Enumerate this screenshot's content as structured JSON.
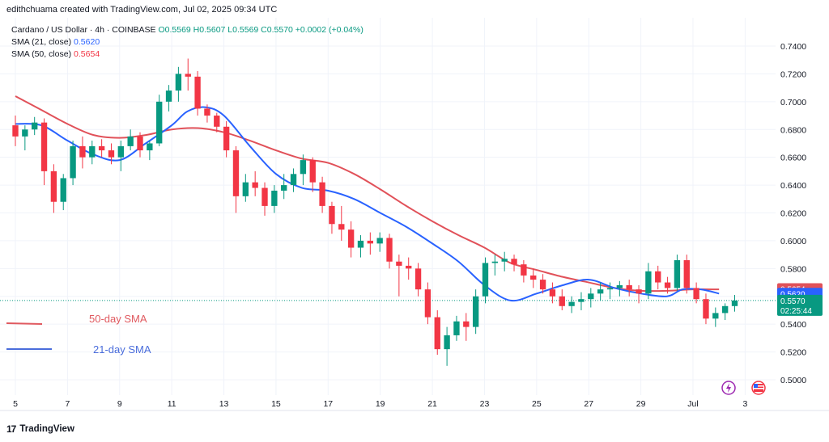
{
  "header": {
    "attribution": "edithchuama created with TradingView.com, Jul 02, 2025 09:34 UTC"
  },
  "legend": {
    "symbol": "Cardano / US Dollar · 4h · COINBASE",
    "ohlc": "O0.5569 H0.5607 L0.5569 C0.5570 +0.0002 (+0.04%)",
    "sma21_label": "SMA (21, close)",
    "sma21_value": "0.5620",
    "sma50_label": "SMA (50, close)",
    "sma50_value": "0.5654"
  },
  "brand": {
    "name": "TradingView"
  },
  "colors": {
    "up": "#089981",
    "down": "#f23645",
    "sma21": "#2962ff",
    "sma50": "#e15159",
    "sma21_light": "#4a6ddb",
    "sma50_light": "#e0595f"
  },
  "chart_data": {
    "type": "candlestick",
    "timeframe": "4h",
    "ylim": [
      0.495,
      0.743
    ],
    "xlim": [
      5.0,
      3.3
    ],
    "y_ticks": [
      "0.7400",
      "0.7200",
      "0.7000",
      "0.6800",
      "0.6600",
      "0.6400",
      "0.6200",
      "0.6000",
      "0.5800",
      "0.5600",
      "0.5400",
      "0.5200",
      "0.5000"
    ],
    "x_ticks": [
      "5",
      "7",
      "9",
      "11",
      "13",
      "15",
      "17",
      "19",
      "21",
      "23",
      "25",
      "27",
      "29",
      "Jul",
      "3"
    ],
    "current_price": "0.5570",
    "countdown": "02:25:44",
    "sma50_tag": "0.5654",
    "sma21_tag": "0.5620",
    "annotations": {
      "sma50_label": "50-day SMA",
      "sma21_label": "21-day SMA"
    },
    "ohlc_anchors": [
      [
        0.683,
        0.69,
        0.668,
        0.675
      ],
      [
        0.675,
        0.683,
        0.665,
        0.68
      ],
      [
        0.68,
        0.689,
        0.676,
        0.685
      ],
      [
        0.685,
        0.688,
        0.64,
        0.65
      ],
      [
        0.65,
        0.655,
        0.62,
        0.628
      ],
      [
        0.628,
        0.648,
        0.622,
        0.645
      ],
      [
        0.645,
        0.672,
        0.64,
        0.668
      ],
      [
        0.668,
        0.675,
        0.652,
        0.66
      ],
      [
        0.66,
        0.672,
        0.655,
        0.668
      ],
      [
        0.668,
        0.673,
        0.66,
        0.665
      ],
      [
        0.665,
        0.67,
        0.655,
        0.66
      ],
      [
        0.66,
        0.672,
        0.65,
        0.668
      ],
      [
        0.668,
        0.68,
        0.665,
        0.675
      ],
      [
        0.675,
        0.678,
        0.66,
        0.665
      ],
      [
        0.665,
        0.672,
        0.658,
        0.67
      ],
      [
        0.67,
        0.705,
        0.668,
        0.7
      ],
      [
        0.7,
        0.712,
        0.693,
        0.708
      ],
      [
        0.708,
        0.725,
        0.7,
        0.72
      ],
      [
        0.72,
        0.731,
        0.708,
        0.718
      ],
      [
        0.718,
        0.722,
        0.69,
        0.695
      ],
      [
        0.695,
        0.698,
        0.685,
        0.69
      ],
      [
        0.69,
        0.692,
        0.678,
        0.682
      ],
      [
        0.682,
        0.686,
        0.66,
        0.665
      ],
      [
        0.665,
        0.668,
        0.62,
        0.632
      ],
      [
        0.632,
        0.648,
        0.628,
        0.642
      ],
      [
        0.642,
        0.65,
        0.632,
        0.638
      ],
      [
        0.638,
        0.642,
        0.618,
        0.625
      ],
      [
        0.625,
        0.64,
        0.62,
        0.636
      ],
      [
        0.636,
        0.648,
        0.63,
        0.64
      ],
      [
        0.64,
        0.652,
        0.635,
        0.648
      ],
      [
        0.648,
        0.662,
        0.64,
        0.658
      ],
      [
        0.658,
        0.66,
        0.635,
        0.642
      ],
      [
        0.642,
        0.646,
        0.62,
        0.625
      ],
      [
        0.625,
        0.628,
        0.605,
        0.612
      ],
      [
        0.612,
        0.625,
        0.6,
        0.608
      ],
      [
        0.608,
        0.614,
        0.588,
        0.595
      ],
      [
        0.595,
        0.604,
        0.588,
        0.6
      ],
      [
        0.6,
        0.606,
        0.59,
        0.598
      ],
      [
        0.598,
        0.606,
        0.592,
        0.602
      ],
      [
        0.602,
        0.605,
        0.58,
        0.585
      ],
      [
        0.585,
        0.59,
        0.56,
        0.582
      ],
      [
        0.582,
        0.588,
        0.572,
        0.58
      ],
      [
        0.58,
        0.584,
        0.56,
        0.565
      ],
      [
        0.565,
        0.57,
        0.54,
        0.545
      ],
      [
        0.545,
        0.55,
        0.518,
        0.522
      ],
      [
        0.522,
        0.538,
        0.51,
        0.532
      ],
      [
        0.532,
        0.546,
        0.528,
        0.542
      ],
      [
        0.542,
        0.548,
        0.528,
        0.538
      ],
      [
        0.538,
        0.565,
        0.533,
        0.56
      ],
      [
        0.56,
        0.588,
        0.555,
        0.584
      ],
      [
        0.584,
        0.59,
        0.575,
        0.585
      ],
      [
        0.585,
        0.592,
        0.578,
        0.587
      ],
      [
        0.587,
        0.59,
        0.578,
        0.583
      ],
      [
        0.583,
        0.586,
        0.57,
        0.575
      ],
      [
        0.575,
        0.58,
        0.566,
        0.572
      ],
      [
        0.572,
        0.576,
        0.562,
        0.565
      ],
      [
        0.565,
        0.57,
        0.555,
        0.56
      ],
      [
        0.56,
        0.565,
        0.55,
        0.553
      ],
      [
        0.553,
        0.56,
        0.548,
        0.556
      ],
      [
        0.556,
        0.563,
        0.55,
        0.558
      ],
      [
        0.558,
        0.566,
        0.552,
        0.562
      ],
      [
        0.562,
        0.57,
        0.557,
        0.565
      ],
      [
        0.565,
        0.57,
        0.558,
        0.566
      ],
      [
        0.566,
        0.571,
        0.56,
        0.568
      ],
      [
        0.568,
        0.572,
        0.56,
        0.565
      ],
      [
        0.565,
        0.568,
        0.555,
        0.562
      ],
      [
        0.562,
        0.584,
        0.558,
        0.578
      ],
      [
        0.578,
        0.582,
        0.565,
        0.57
      ],
      [
        0.57,
        0.574,
        0.562,
        0.566
      ],
      [
        0.566,
        0.59,
        0.564,
        0.586
      ],
      [
        0.586,
        0.59,
        0.562,
        0.566
      ],
      [
        0.566,
        0.57,
        0.555,
        0.558
      ],
      [
        0.558,
        0.562,
        0.54,
        0.544
      ],
      [
        0.544,
        0.552,
        0.538,
        0.548
      ],
      [
        0.548,
        0.555,
        0.543,
        0.553
      ],
      [
        0.553,
        0.561,
        0.549,
        0.557
      ]
    ],
    "sma21_points": [
      [
        5.0,
        0.684
      ],
      [
        6.0,
        0.683
      ],
      [
        7.0,
        0.672
      ],
      [
        8.0,
        0.662
      ],
      [
        9.0,
        0.658
      ],
      [
        10.0,
        0.67
      ],
      [
        11.0,
        0.683
      ],
      [
        11.6,
        0.693
      ],
      [
        12.3,
        0.696
      ],
      [
        13.0,
        0.69
      ],
      [
        14.0,
        0.668
      ],
      [
        15.0,
        0.648
      ],
      [
        16.0,
        0.638
      ],
      [
        17.0,
        0.636
      ],
      [
        18.0,
        0.63
      ],
      [
        19.0,
        0.62
      ],
      [
        20.0,
        0.61
      ],
      [
        21.0,
        0.598
      ],
      [
        22.0,
        0.585
      ],
      [
        23.0,
        0.568
      ],
      [
        24.0,
        0.557
      ],
      [
        25.0,
        0.562
      ],
      [
        26.0,
        0.568
      ],
      [
        27.0,
        0.572
      ],
      [
        28.0,
        0.566
      ],
      [
        29.0,
        0.562
      ],
      [
        30.0,
        0.56
      ],
      [
        30.6,
        0.565
      ],
      [
        31.3,
        0.565
      ],
      [
        32.0,
        0.562
      ]
    ],
    "sma50_points": [
      [
        5.0,
        0.704
      ],
      [
        6.0,
        0.694
      ],
      [
        7.0,
        0.684
      ],
      [
        8.0,
        0.676
      ],
      [
        9.0,
        0.674
      ],
      [
        10.0,
        0.676
      ],
      [
        11.0,
        0.68
      ],
      [
        12.0,
        0.681
      ],
      [
        13.0,
        0.678
      ],
      [
        14.0,
        0.672
      ],
      [
        15.0,
        0.665
      ],
      [
        16.0,
        0.659
      ],
      [
        17.0,
        0.656
      ],
      [
        18.0,
        0.648
      ],
      [
        19.0,
        0.637
      ],
      [
        20.0,
        0.625
      ],
      [
        21.0,
        0.614
      ],
      [
        22.0,
        0.604
      ],
      [
        23.0,
        0.595
      ],
      [
        24.0,
        0.584
      ],
      [
        25.0,
        0.579
      ],
      [
        26.0,
        0.574
      ],
      [
        27.0,
        0.57
      ],
      [
        28.0,
        0.566
      ],
      [
        29.0,
        0.564
      ],
      [
        30.0,
        0.564
      ],
      [
        31.0,
        0.565
      ],
      [
        32.0,
        0.565
      ]
    ]
  }
}
